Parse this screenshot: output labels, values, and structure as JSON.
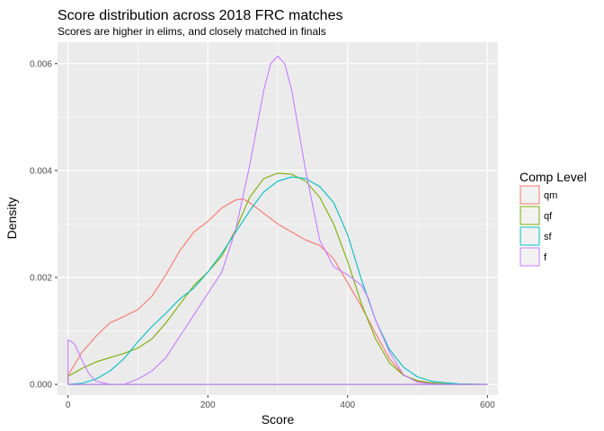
{
  "chart_data": {
    "type": "area",
    "title": "Score distribution across 2018 FRC matches",
    "subtitle": "Scores are higher in elims, and closely matched in finals",
    "xlabel": "Score",
    "ylabel": "Density",
    "xlim": [
      -15,
      615
    ],
    "ylim": [
      -0.0002,
      0.0064
    ],
    "x_ticks": [
      0,
      200,
      400,
      600
    ],
    "x_tick_labels": [
      "0",
      "200",
      "400",
      "600"
    ],
    "y_ticks": [
      0,
      0.002,
      0.004,
      0.006
    ],
    "y_tick_labels": [
      "0.000",
      "0.002",
      "0.004",
      "0.006"
    ],
    "grid": true,
    "legend_title": "Comp Level",
    "legend_position": "right",
    "series": [
      {
        "name": "qm",
        "color": "#F8766D",
        "x": [
          0,
          20,
          40,
          60,
          80,
          100,
          120,
          140,
          160,
          180,
          200,
          220,
          240,
          250,
          260,
          280,
          300,
          320,
          340,
          360,
          380,
          400,
          420,
          440,
          460,
          480,
          500,
          520,
          540,
          560,
          580,
          600
        ],
        "y": [
          0.00017,
          0.0006,
          0.0009,
          0.00115,
          0.00127,
          0.0014,
          0.00165,
          0.00205,
          0.0025,
          0.00285,
          0.00305,
          0.0033,
          0.00345,
          0.00347,
          0.0034,
          0.0032,
          0.003,
          0.00285,
          0.0027,
          0.0026,
          0.00235,
          0.0019,
          0.00145,
          0.00095,
          0.00048,
          0.00017,
          6e-05,
          2e-05,
          1e-05,
          5e-06,
          2e-06,
          0.0
        ]
      },
      {
        "name": "qf",
        "color": "#7CAE00",
        "x": [
          0,
          20,
          40,
          60,
          80,
          100,
          120,
          140,
          160,
          180,
          200,
          220,
          240,
          260,
          280,
          300,
          320,
          340,
          360,
          380,
          400,
          420,
          440,
          460,
          480,
          500,
          520,
          540,
          560,
          580,
          600
        ],
        "y": [
          0.00015,
          0.0003,
          0.00042,
          0.0005,
          0.00058,
          0.00068,
          0.00085,
          0.00115,
          0.0015,
          0.00185,
          0.0021,
          0.0024,
          0.0029,
          0.0035,
          0.00385,
          0.00395,
          0.00393,
          0.0038,
          0.0035,
          0.003,
          0.0023,
          0.0015,
          0.00085,
          0.0004,
          0.00017,
          7e-05,
          3e-05,
          1e-05,
          5e-06,
          2e-06,
          0.0
        ]
      },
      {
        "name": "sf",
        "color": "#00BFC4",
        "x": [
          0,
          20,
          40,
          60,
          80,
          100,
          120,
          140,
          160,
          180,
          200,
          220,
          240,
          260,
          280,
          300,
          320,
          340,
          360,
          380,
          400,
          420,
          440,
          460,
          480,
          500,
          520,
          540,
          560,
          580,
          600
        ],
        "y": [
          0.0,
          2e-05,
          0.0001,
          0.00025,
          0.00048,
          0.0008,
          0.00108,
          0.00133,
          0.0016,
          0.0018,
          0.0021,
          0.00245,
          0.00285,
          0.00325,
          0.0036,
          0.0038,
          0.00388,
          0.00385,
          0.0037,
          0.0034,
          0.0028,
          0.00195,
          0.0012,
          0.00065,
          0.00032,
          0.00014,
          6e-05,
          3e-05,
          1e-05,
          5e-06,
          0.0
        ]
      },
      {
        "name": "f",
        "color": "#C77CFF",
        "x": [
          0,
          5,
          10,
          20,
          30,
          40,
          60,
          80,
          100,
          120,
          140,
          160,
          180,
          200,
          220,
          240,
          260,
          280,
          290,
          300,
          310,
          320,
          340,
          360,
          380,
          400,
          420,
          430,
          440,
          460,
          480,
          500,
          520,
          540,
          560,
          580,
          600
        ],
        "y": [
          0.00083,
          0.0008,
          0.00074,
          0.00045,
          0.0002,
          6e-05,
          0.0,
          0.0,
          0.0001,
          0.00025,
          0.0005,
          0.0009,
          0.0013,
          0.0017,
          0.0021,
          0.0029,
          0.0041,
          0.0055,
          0.006,
          0.00614,
          0.006,
          0.0055,
          0.004,
          0.0027,
          0.0022,
          0.00205,
          0.00185,
          0.0016,
          0.0012,
          0.0006,
          0.00018,
          4e-05,
          1e-05,
          0.0,
          0.0,
          0.0,
          0.0
        ]
      }
    ]
  }
}
